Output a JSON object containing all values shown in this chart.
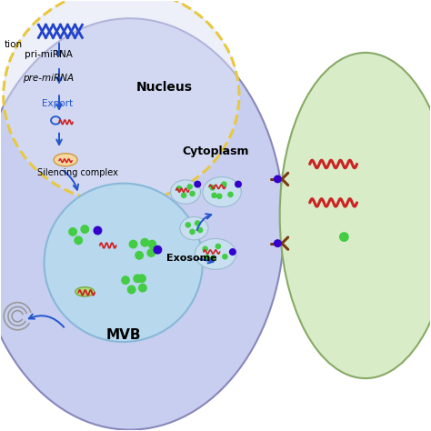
{
  "bg_color": "#ffffff",
  "cell_color": "#c8cef0",
  "nucleus_color": "#dde2f5",
  "nucleus_border": "#e8c840",
  "mvb_color": "#b8d8ee",
  "exosome_bubble_color": "#c8dff0",
  "target_cell_color": "#d8ecc8",
  "dna_color": "#2244cc",
  "arrow_color": "#2255cc",
  "mirna_color": "#cc2222",
  "green_dot_color": "#44cc44",
  "purple_dot_color": "#3300cc",
  "receptor_color": "#7a3a10",
  "labels": {
    "nucleus": "Nucleus",
    "cytoplasm": "Cytoplasm",
    "mvb": "MVB",
    "exosome": "Exosome",
    "pri_mirna": "pri-miRNA",
    "pre_mirna": "pre-miRNA",
    "export": "Export",
    "silencing": "Silencing complex",
    "transcription": "tion"
  }
}
